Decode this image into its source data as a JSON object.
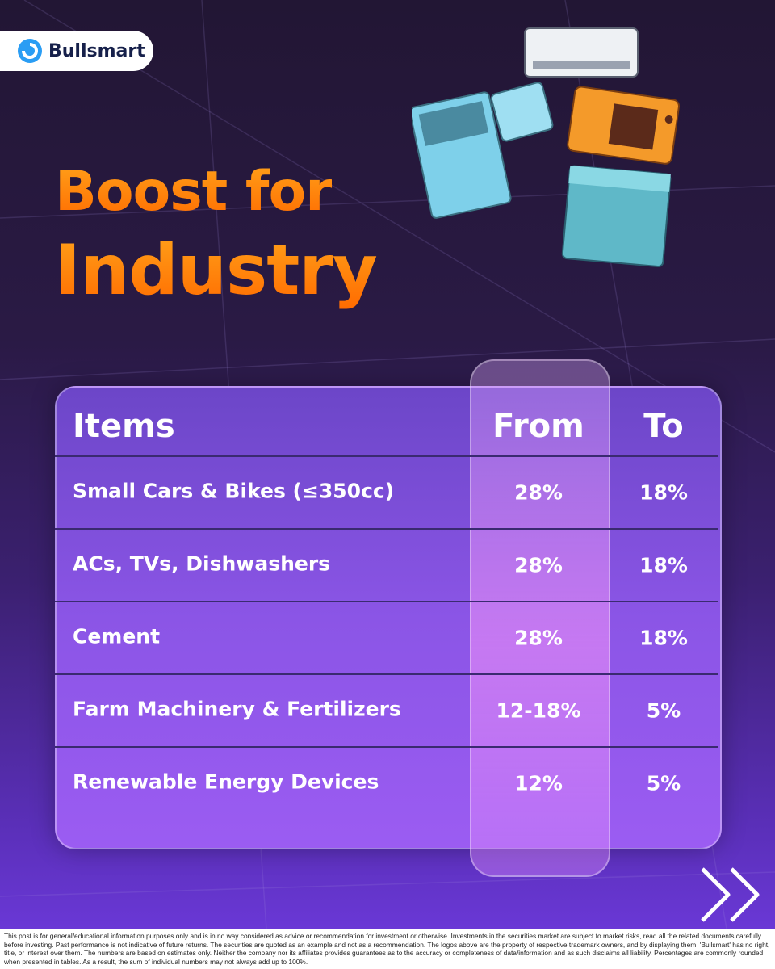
{
  "brand": "Bullsmart",
  "title": {
    "line1": "Boost for",
    "line2": "Industry"
  },
  "table": {
    "header": [
      "Items",
      "From",
      "To"
    ],
    "rows": [
      [
        "Small Cars & Bikes (≤350cc)",
        "28%",
        "18%"
      ],
      [
        "ACs, TVs, Dishwashers",
        "28%",
        "18%"
      ],
      [
        "Cement",
        "28%",
        "18%"
      ],
      [
        "Farm Machinery & Fertilizers",
        "12-18%",
        "5%"
      ],
      [
        "Renewable Energy Devices",
        "12%",
        "5%"
      ]
    ]
  },
  "disclaimer": "This post is for general/educational information purposes only and is in no way considered as advice or recommendation for investment or otherwise. Investments in the securities market are subject to market risks, read all the related documents carefully before investing. Past performance is not indicative of future returns. The securities are quoted as an example and not as a recommendation. The logos above are the property of respective trademark owners, and by displaying them, 'Bullsmart' has no right, title, or interest over them. The numbers are based on estimates only. Neither the company nor its affiliates provides guarantees as to the accuracy or completeness of data/information and as such disclaims all liability. Percentages are commonly rounded when presented in tables. As a result, the sum of individual numbers may not always add up to 100%."
}
